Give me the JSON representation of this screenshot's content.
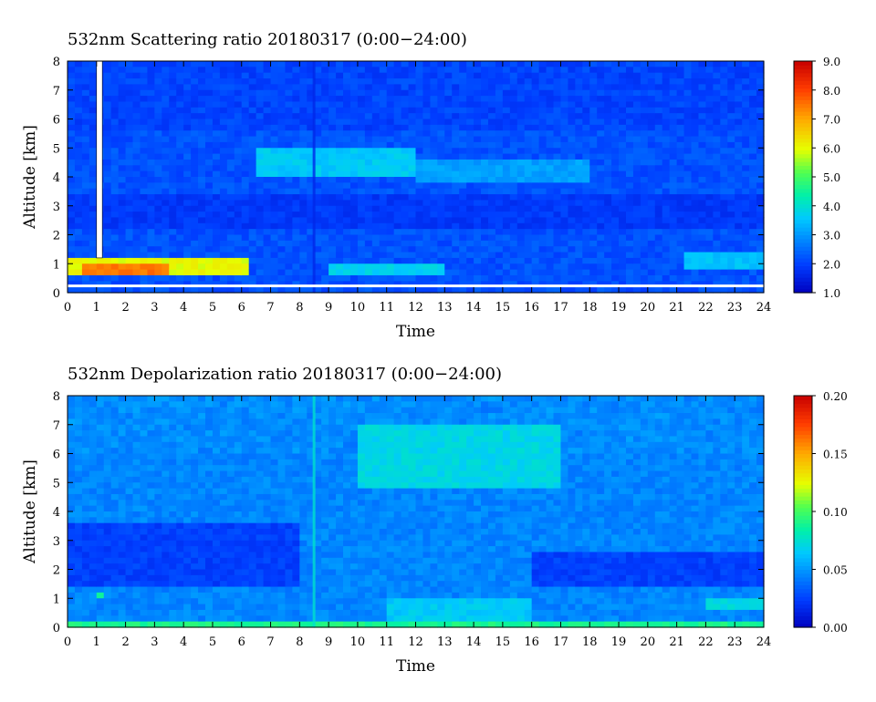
{
  "chart_data": [
    {
      "type": "heatmap",
      "title": "532nm Scattering ratio  20180317 (0:00−24:00)",
      "xlabel": "Time",
      "ylabel": "Altitude [km]",
      "xlim": [
        0,
        24
      ],
      "ylim": [
        0,
        8
      ],
      "x_ticks": [
        "0",
        "1",
        "2",
        "3",
        "4",
        "5",
        "6",
        "7",
        "8",
        "9",
        "10",
        "11",
        "12",
        "13",
        "14",
        "15",
        "16",
        "17",
        "18",
        "19",
        "20",
        "21",
        "22",
        "23",
        "24"
      ],
      "y_ticks": [
        "0",
        "1",
        "2",
        "3",
        "4",
        "5",
        "6",
        "7",
        "8"
      ],
      "colorbar": {
        "min": 1.0,
        "max": 9.0,
        "ticks": [
          "1.0",
          "2.0",
          "3.0",
          "4.0",
          "5.0",
          "6.0",
          "7.0",
          "8.0",
          "9.0"
        ]
      },
      "background_level": 2.2,
      "features": [
        {
          "t0": 0.0,
          "t1": 6.3,
          "z0": 0.55,
          "z1": 1.15,
          "value": 6.0
        },
        {
          "t0": 0.5,
          "t1": 3.5,
          "z0": 0.7,
          "z1": 1.0,
          "value": 7.5
        },
        {
          "t0": 6.5,
          "t1": 12.0,
          "z0": 4.1,
          "z1": 4.9,
          "value": 3.6
        },
        {
          "t0": 12.0,
          "t1": 18.0,
          "z0": 3.9,
          "z1": 4.5,
          "value": 3.1
        },
        {
          "t0": 9.0,
          "t1": 13.0,
          "z0": 0.6,
          "z1": 0.95,
          "value": 3.7
        },
        {
          "t0": 21.3,
          "t1": 24.0,
          "z0": 0.8,
          "z1": 1.3,
          "value": 3.5
        },
        {
          "t0": 0.0,
          "t1": 24.0,
          "z0": 2.3,
          "z1": 3.3,
          "value": 1.9
        },
        {
          "t0": 0.0,
          "t1": 24.0,
          "z0": 0.3,
          "z1": 0.45,
          "value": 1.3
        }
      ],
      "missing_data": [
        {
          "t0": 1.0,
          "t1": 1.2,
          "z0": 1.2,
          "z1": 8.0
        }
      ]
    },
    {
      "type": "heatmap",
      "title": "532nm Depolarization ratio  20180317 (0:00−24:00)",
      "xlabel": "Time",
      "ylabel": "Altitude [km]",
      "xlim": [
        0,
        24
      ],
      "ylim": [
        0,
        8
      ],
      "x_ticks": [
        "0",
        "1",
        "2",
        "3",
        "4",
        "5",
        "6",
        "7",
        "8",
        "9",
        "10",
        "11",
        "12",
        "13",
        "14",
        "15",
        "16",
        "17",
        "18",
        "19",
        "20",
        "21",
        "22",
        "23",
        "24"
      ],
      "y_ticks": [
        "0",
        "1",
        "2",
        "3",
        "4",
        "5",
        "6",
        "7",
        "8"
      ],
      "colorbar": {
        "min": 0.0,
        "max": 0.2,
        "ticks": [
          "0.00",
          "0.05",
          "0.10",
          "0.15",
          "0.20"
        ]
      },
      "background_level": 0.045,
      "features": [
        {
          "t0": 0.0,
          "t1": 8.0,
          "z0": 1.3,
          "z1": 3.5,
          "value": 0.025
        },
        {
          "t0": 16.0,
          "t1": 24.0,
          "z0": 1.5,
          "z1": 2.5,
          "value": 0.025
        },
        {
          "t0": 10.0,
          "t1": 17.0,
          "z0": 4.8,
          "z1": 7.0,
          "value": 0.07
        },
        {
          "t0": 11.0,
          "t1": 16.0,
          "z0": 0.2,
          "z1": 1.0,
          "value": 0.065
        },
        {
          "t0": 1.0,
          "t1": 1.3,
          "z0": 1.0,
          "z1": 1.2,
          "value": 0.09
        },
        {
          "t0": 0.0,
          "t1": 24.0,
          "z0": 0.0,
          "z1": 0.12,
          "value": 0.09
        },
        {
          "t0": 22.0,
          "t1": 24.0,
          "z0": 0.6,
          "z1": 1.0,
          "value": 0.07
        }
      ]
    }
  ]
}
